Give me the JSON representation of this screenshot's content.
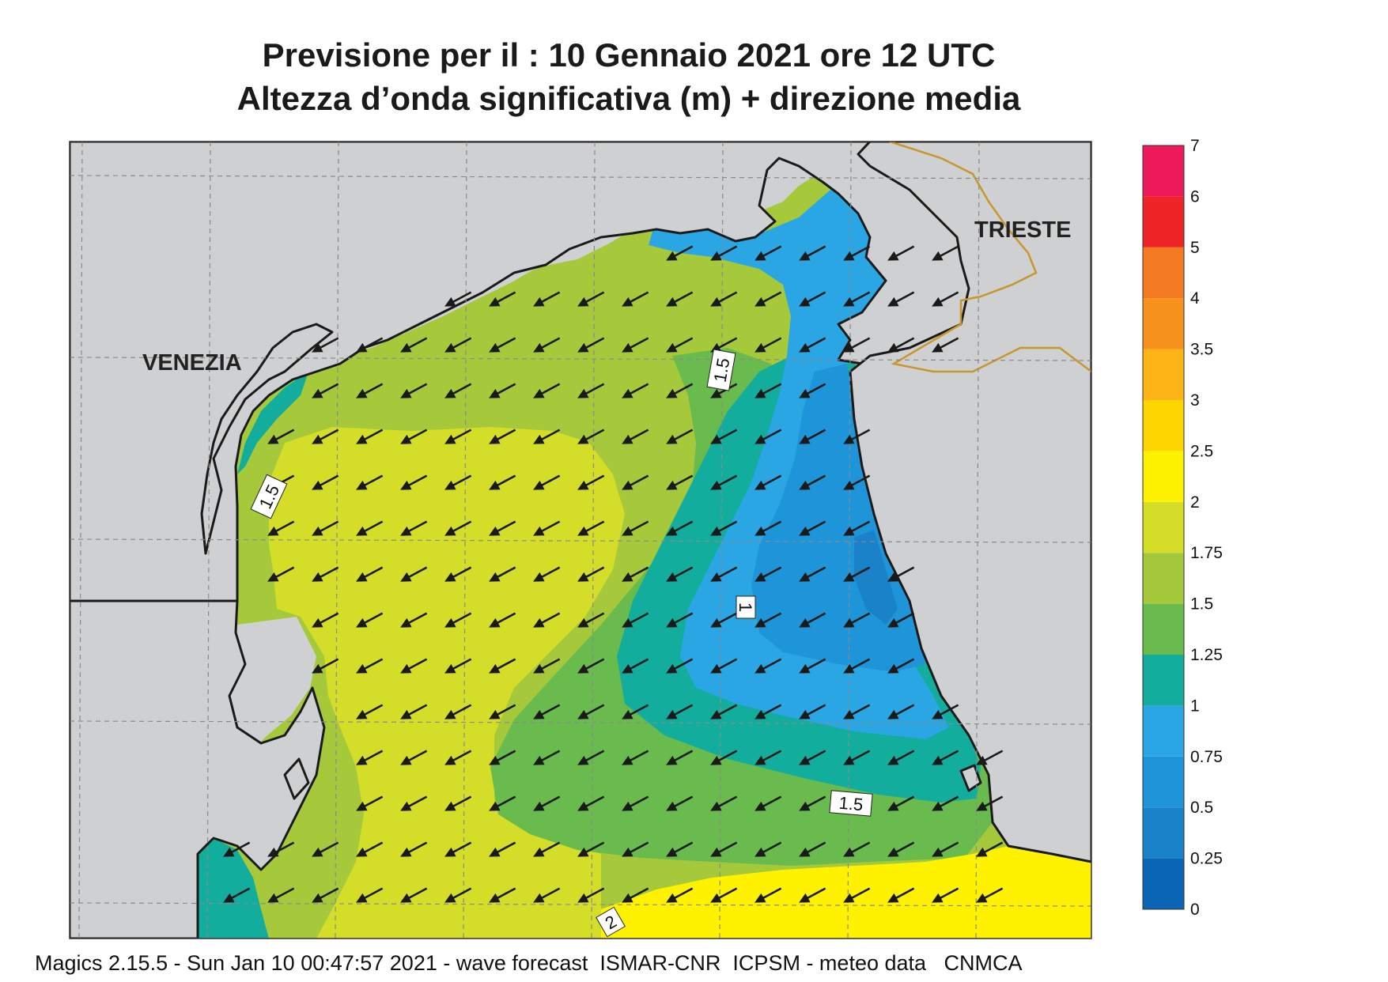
{
  "title": {
    "line1": "Previsione per il  :  10  Gennaio  2021   ore 12 UTC",
    "line2": "Altezza d’onda significativa (m) + direzione media"
  },
  "places": [
    {
      "name": "VENEZIA"
    },
    {
      "name": "TRIESTE"
    }
  ],
  "contour_labels": [
    "1.5",
    "1.5",
    "1",
    "1.5",
    "2"
  ],
  "legend": {
    "unit": "m",
    "levels": [
      "0",
      "0.25",
      "0.5",
      "0.75",
      "1",
      "1.25",
      "1.5",
      "1.75",
      "2",
      "2.5",
      "3",
      "3.5",
      "4",
      "5",
      "6",
      "7"
    ],
    "colors": [
      "#0a66b5",
      "#1a82c8",
      "#1e95d8",
      "#2aa6e4",
      "#13ad9d",
      "#6abb4e",
      "#a5c93b",
      "#d4dd27",
      "#fff200",
      "#ffd500",
      "#fdb416",
      "#f7921e",
      "#f47a22",
      "#ee2426",
      "#ee1b5c"
    ]
  },
  "colors": {
    "land": "#cfd0d2",
    "coast": "#1a1a1a",
    "border": "#c8962b",
    "grid": "#8a8a8a",
    "arrow": "#1a1a1a"
  },
  "wave_direction": "from north-east (arrows pointing south-west)",
  "footer": "Magics 2.15.5 - Sun Jan 10 00:47:57 2021 - wave forecast  ISMAR-CNR  ICPSM - meteo data   CNMCA"
}
